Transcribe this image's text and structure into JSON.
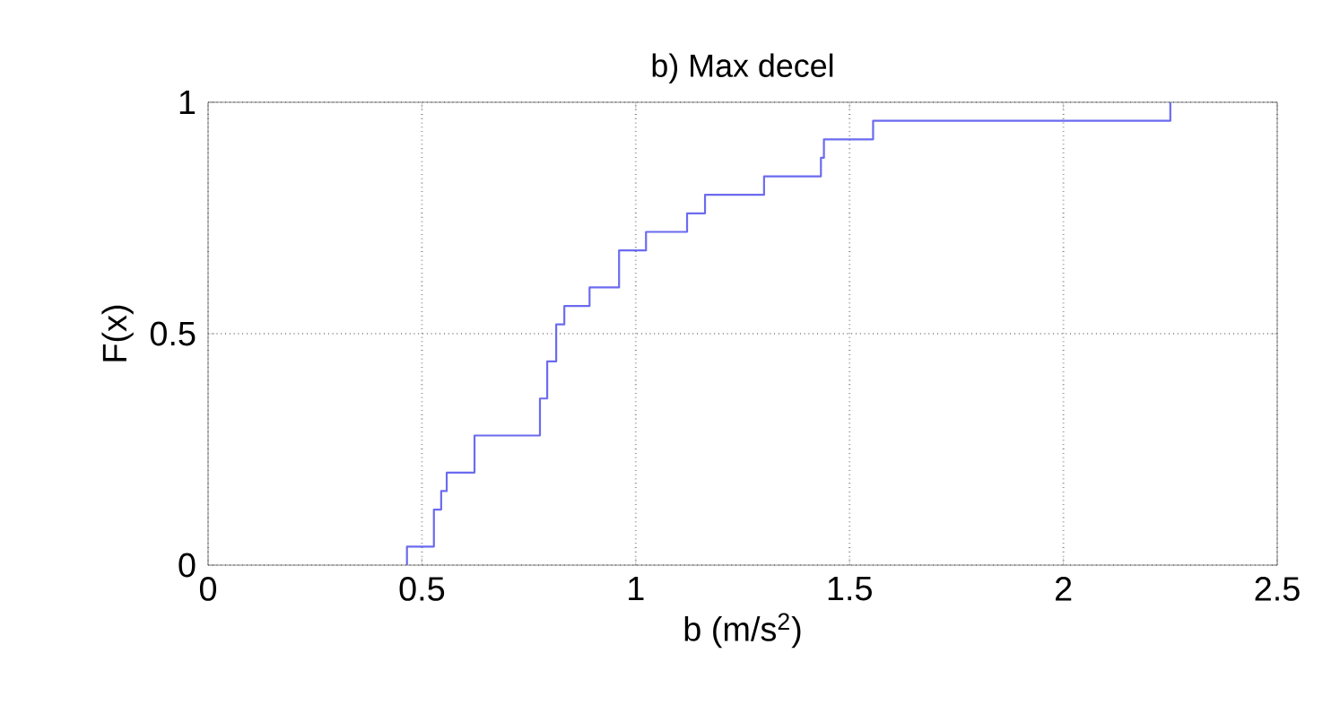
{
  "chart_data": {
    "type": "step",
    "title": "b) Max decel",
    "xlabel": "b (m/s$^{2}$)",
    "ylabel": "F(x)",
    "x": [
      0.465,
      0.465,
      0.528,
      0.545,
      0.558,
      0.623,
      0.776,
      0.793,
      0.814,
      0.833,
      0.892,
      0.961,
      1.024,
      1.12,
      1.162,
      1.3,
      1.433,
      1.44,
      1.555,
      2.25
    ],
    "values": [
      0,
      0.04,
      0.12,
      0.16,
      0.2,
      0.28,
      0.36,
      0.44,
      0.52,
      0.56,
      0.6,
      0.68,
      0.72,
      0.76,
      0.8,
      0.84,
      0.88,
      0.92,
      0.96,
      1.0
    ],
    "color": "#6b6bf0",
    "xlim": [
      0,
      2.5
    ],
    "ylim": [
      0,
      1
    ],
    "xticks": [
      0,
      0.5,
      1,
      1.5,
      2,
      2.5
    ],
    "yticks": [
      0,
      0.5,
      1
    ],
    "grid": true,
    "line_style": "solid"
  }
}
